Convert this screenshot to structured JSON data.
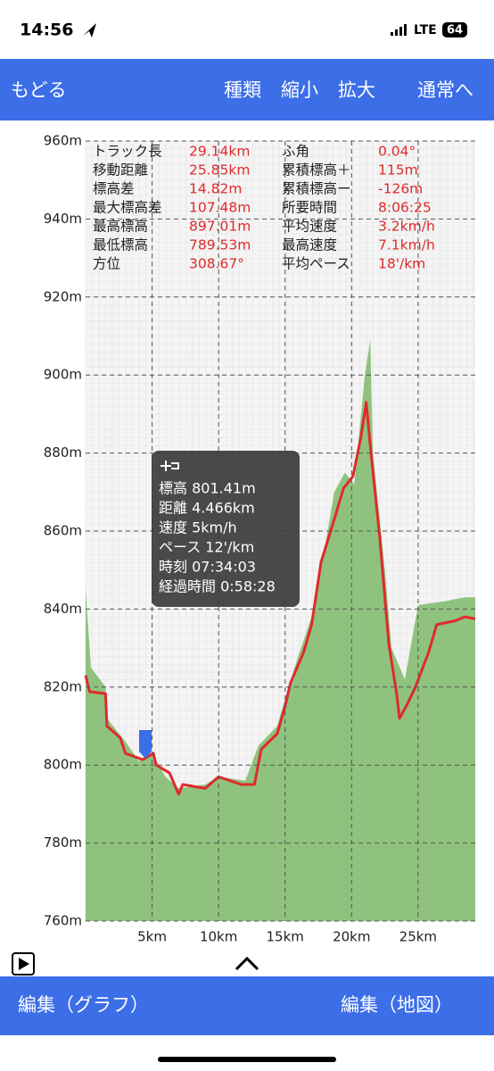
{
  "status": {
    "time": "14:56",
    "network": "LTE",
    "battery": "64"
  },
  "nav": {
    "back": "もどる",
    "items": [
      "種類",
      "縮小",
      "拡大"
    ],
    "normal": "通常へ"
  },
  "stats": [
    [
      "トラック長",
      "29.14km",
      "ふ角",
      "0.04°"
    ],
    [
      "移動距離",
      "25.85km",
      "累積標高＋",
      "115m"
    ],
    [
      "標高差",
      "14.82m",
      "累積標高ー",
      "-126m"
    ],
    [
      "最大標高差",
      "107.48m",
      "所要時間",
      "8:06:25"
    ],
    [
      "最高標高",
      "897.01m",
      "平均速度",
      "3.2km/h"
    ],
    [
      "最低標高",
      "789.53m",
      "最高速度",
      "7.1km/h"
    ],
    [
      "方位",
      "308.67°",
      "平均ペース",
      "18'/km"
    ]
  ],
  "chart_data": {
    "type": "line",
    "ylim": [
      760,
      960
    ],
    "yticks": [
      {
        "value": 960,
        "label": "960m"
      },
      {
        "value": 940,
        "label": "940m"
      },
      {
        "value": 920,
        "label": "920m"
      },
      {
        "value": 900,
        "label": "900m"
      },
      {
        "value": 880,
        "label": "880m"
      },
      {
        "value": 860,
        "label": "860m"
      },
      {
        "value": 840,
        "label": "840m"
      },
      {
        "value": 820,
        "label": "820m"
      },
      {
        "value": 800,
        "label": "800m"
      },
      {
        "value": 780,
        "label": "780m"
      },
      {
        "value": 760,
        "label": "760m"
      }
    ],
    "xlim": [
      0,
      29.3
    ],
    "xticks": [
      {
        "value": 5,
        "label": "5km"
      },
      {
        "value": 10,
        "label": "10km"
      },
      {
        "value": 15,
        "label": "15km"
      },
      {
        "value": 20,
        "label": "20km"
      },
      {
        "value": 25,
        "label": "25km"
      }
    ],
    "grid": true,
    "series": [
      {
        "color": "#8fc27e",
        "fill": true,
        "x": [
          0,
          0.4,
          1.5,
          1.6,
          3,
          4,
          5,
          6,
          7,
          9,
          10,
          12,
          13,
          14.4,
          15,
          16,
          17,
          17.7,
          18.7,
          19.5,
          20.2,
          21,
          21.4,
          21.6,
          22.5,
          23,
          24,
          25,
          27,
          28.5,
          29.3
        ],
        "values": [
          845,
          825,
          820,
          812,
          806,
          801,
          803,
          797,
          794,
          795,
          797,
          796,
          805,
          810,
          817,
          828,
          838,
          850,
          870,
          875,
          872,
          900,
          909,
          880,
          850,
          830,
          822,
          841,
          842,
          843,
          843
        ]
      },
      {
        "color": "#e02a2a",
        "fill": false,
        "x": [
          0,
          0.3,
          1.5,
          1.6,
          2.6,
          3.0,
          4.3,
          5.1,
          5.3,
          6.3,
          7.0,
          7.3,
          9.0,
          10.0,
          11.7,
          12.7,
          13.2,
          14.4,
          15.0,
          15.4,
          16.4,
          17.0,
          17.7,
          18.7,
          19.4,
          20.1,
          20.7,
          21.1,
          21.4,
          22.1,
          22.8,
          23.4,
          23.6,
          24.1,
          24.8,
          25.8,
          26.4,
          27.8,
          28.5,
          29.3
        ],
        "values": [
          823,
          818.8,
          818.3,
          810,
          807,
          803,
          801.4,
          803,
          800,
          798,
          792.5,
          795,
          794,
          797,
          795,
          795,
          804,
          808,
          815,
          821,
          829,
          836,
          852,
          863,
          871,
          874,
          884,
          893,
          882,
          859,
          831,
          818,
          812,
          815,
          820,
          829,
          836,
          837,
          838,
          837.5
        ]
      }
    ]
  },
  "tooltip": [
    "標高 801.41m",
    "距離 4.466km",
    "速度 5km/h",
    "ペース 12'/km",
    "時刻 07:34:03",
    "経過時間 0:58:28"
  ],
  "bottom": {
    "left": "編集（グラフ）",
    "right": "編集（地図）"
  }
}
